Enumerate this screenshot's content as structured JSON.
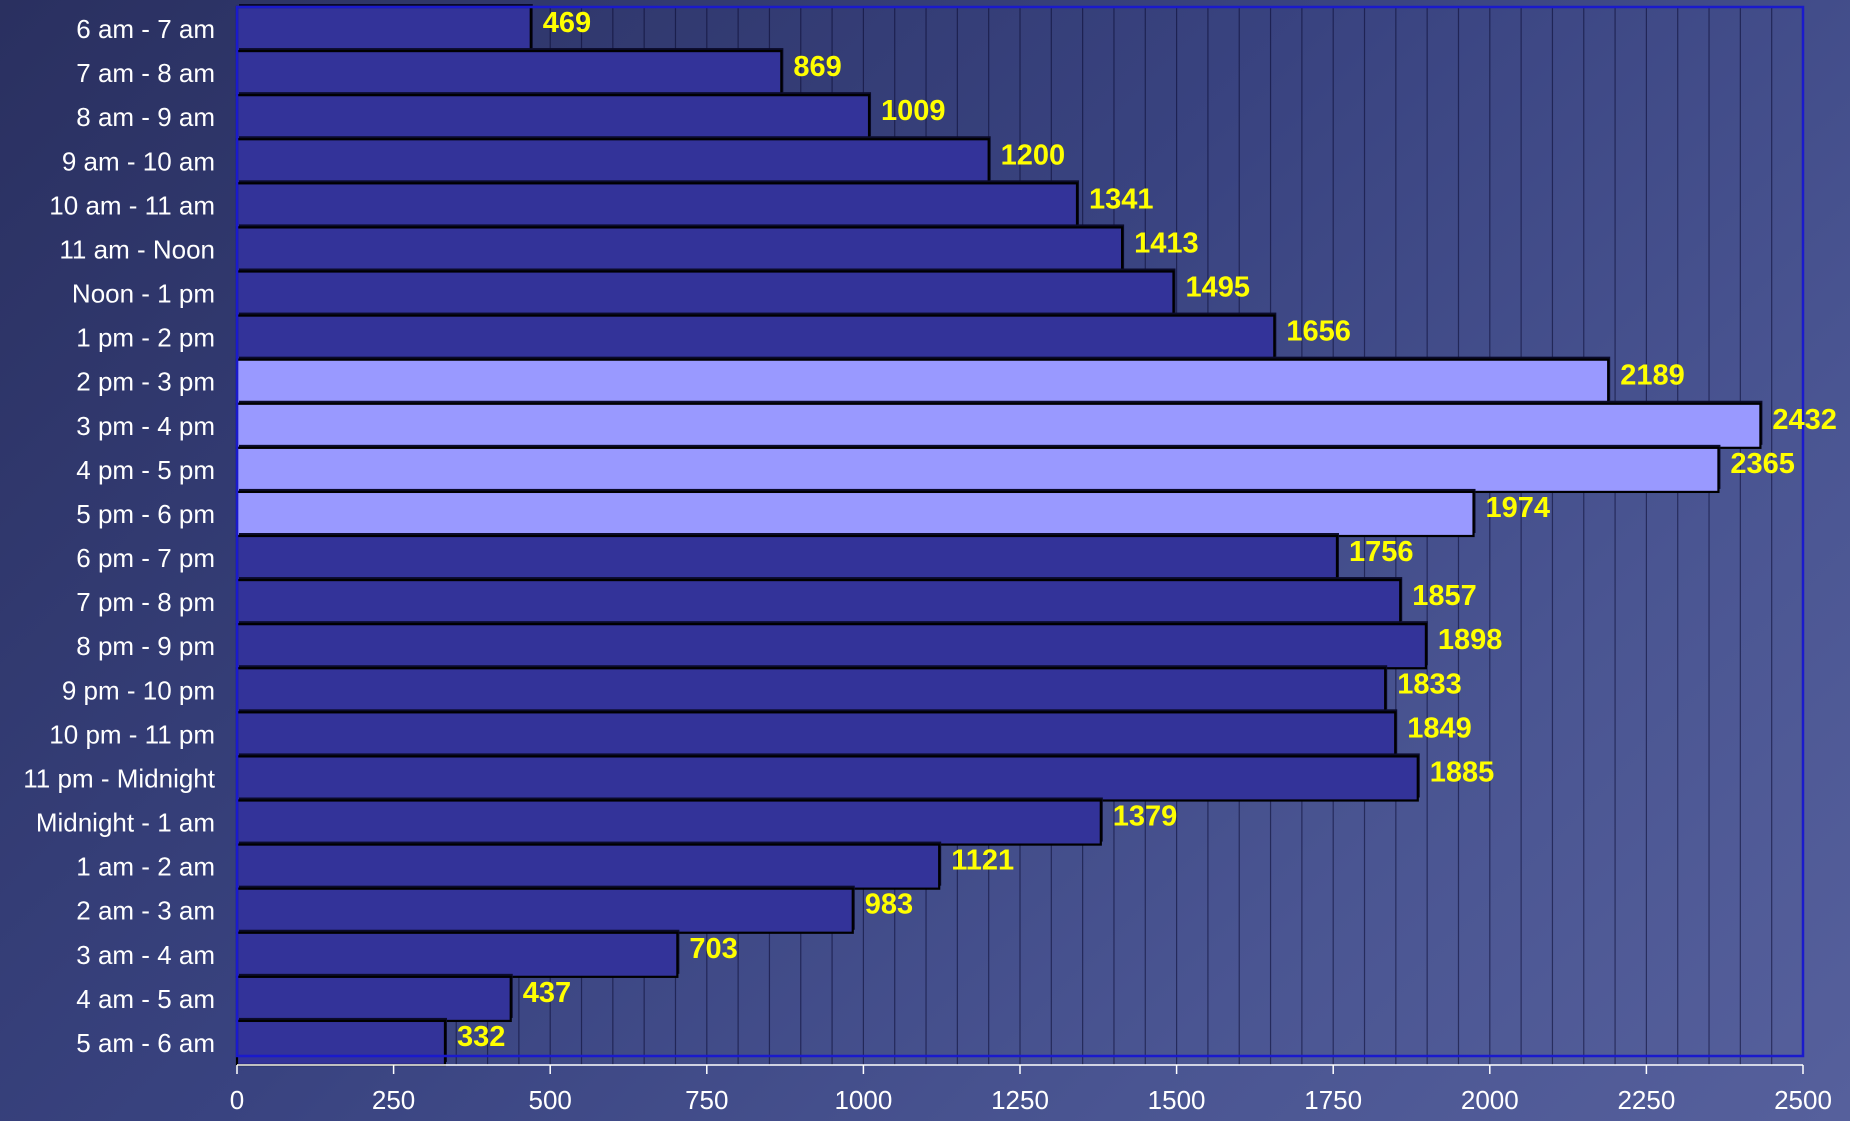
{
  "chart_data": {
    "type": "bar",
    "orientation": "horizontal",
    "categories": [
      "6 am - 7 am",
      "7 am - 8 am",
      "8 am - 9 am",
      "9 am - 10 am",
      "10 am - 11 am",
      "11 am - Noon",
      "Noon - 1 pm",
      "1 pm - 2 pm",
      "2 pm - 3 pm",
      "3 pm - 4 pm",
      "4 pm - 5 pm",
      "5 pm - 6 pm",
      "6 pm - 7 pm",
      "7 pm - 8 pm",
      "8 pm - 9 pm",
      "9 pm - 10 pm",
      "10 pm - 11 pm",
      "11 pm - Midnight",
      "Midnight - 1 am",
      "1 am - 2 am",
      "2 am - 3 am",
      "3 am - 4 am",
      "4 am - 5 am",
      "5 am - 6 am"
    ],
    "values": [
      469,
      869,
      1009,
      1200,
      1341,
      1413,
      1495,
      1656,
      2189,
      2432,
      2365,
      1974,
      1756,
      1857,
      1898,
      1833,
      1849,
      1885,
      1379,
      1121,
      983,
      703,
      437,
      332
    ],
    "highlighted_categories": [
      "2 pm - 3 pm",
      "3 pm - 4 pm",
      "4 pm - 5 pm",
      "5 pm - 6 pm"
    ],
    "xlim": [
      0,
      2500
    ],
    "x_ticks": [
      0,
      250,
      500,
      750,
      1000,
      1250,
      1500,
      1750,
      2000,
      2250,
      2500
    ],
    "grid": "vertical minor lines",
    "data_labels": true,
    "title": "",
    "xlabel": "",
    "ylabel": ""
  },
  "colors": {
    "bar": "#333399",
    "bar_highlight": "#9999ff",
    "value_label": "#ffff00",
    "plot_border": "#1a1acc",
    "text": "#ffffff"
  }
}
